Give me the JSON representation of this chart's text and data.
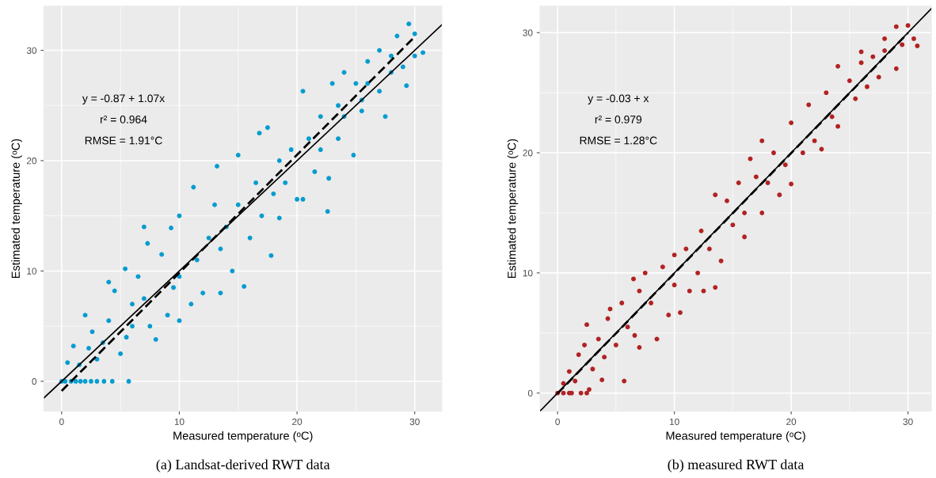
{
  "chart_data": [
    {
      "type": "scatter",
      "title": "(a) Landsat-derived RWT data",
      "xlabel": "Measured temperature (ᵒC)",
      "ylabel": "Estimated temperature (ᵒC)",
      "annotations": [
        "y = -0.87 + 1.07x",
        "r² = 0.964",
        "RMSE = 1.91°C"
      ],
      "xlim": [
        -1.5,
        32.3
      ],
      "ylim": [
        -2.7,
        34
      ],
      "xticks": [
        0,
        10,
        20,
        30
      ],
      "yticks": [
        0,
        10,
        20,
        30
      ],
      "grid": true,
      "legend": false,
      "marker": "circle",
      "series": [
        {
          "color": "#069ccf",
          "x": [
            0,
            0.3,
            0.8,
            1.2,
            1.6,
            2,
            2.5,
            3,
            3.6,
            4.3,
            5.7,
            0.5,
            1,
            1.5,
            2,
            2.6,
            2.3,
            3,
            3.5,
            4,
            4.5,
            4,
            5,
            5.4,
            5.5,
            6,
            6.5,
            6,
            7,
            7.3,
            7,
            7.5,
            8,
            8.5,
            9,
            9.3,
            9.5,
            10,
            10,
            10,
            11,
            11.2,
            11.5,
            12,
            12.5,
            13.2,
            13,
            13.5,
            13.5,
            14,
            14.5,
            15,
            15,
            15.5,
            16,
            16.5,
            16.8,
            17,
            17.5,
            17.8,
            18,
            18.5,
            18.5,
            19,
            19.5,
            20,
            20.5,
            20.5,
            21,
            21.5,
            22,
            22,
            22.7,
            22.6,
            23,
            23.5,
            23.5,
            24,
            24,
            24.8,
            25,
            25.5,
            25.5,
            26,
            26,
            27,
            27,
            27.5,
            28,
            28,
            28.5,
            29,
            29.5,
            30,
            30,
            30.7,
            29.3
          ],
          "values": [
            0,
            0,
            0,
            0,
            0,
            0,
            0,
            0,
            0,
            0,
            0,
            1.7,
            3.2,
            1.5,
            6,
            4.5,
            3,
            2,
            3.5,
            9,
            8.2,
            5.5,
            2.5,
            10.2,
            4,
            7,
            9.5,
            5,
            14,
            12.5,
            7.5,
            5,
            3.8,
            11.5,
            6,
            13.9,
            8.5,
            15,
            9.5,
            5.5,
            7,
            17.6,
            11,
            8,
            13,
            19.5,
            16,
            12,
            8,
            14,
            10,
            16,
            20.5,
            8.6,
            13,
            18,
            22.5,
            15,
            23,
            11.4,
            17,
            20,
            14.8,
            18,
            21,
            16.5,
            26.3,
            16.5,
            22,
            19,
            24,
            21,
            18.4,
            15.4,
            27,
            25,
            22,
            28,
            24,
            20.5,
            27,
            24.5,
            25.5,
            29,
            27,
            30,
            26.3,
            24,
            29.5,
            28,
            31.3,
            28.5,
            32.4,
            31.5,
            29.5,
            29.8,
            26.8
          ]
        },
        {
          "type": "line",
          "color": "#000000",
          "line_style": "solid",
          "marker": "none",
          "x": [
            -1.5,
            32.3
          ],
          "values": [
            -1.5,
            32.3
          ]
        },
        {
          "type": "line",
          "color": "#000000",
          "line_style": "dashed",
          "marker": "none",
          "x": [
            0,
            30
          ],
          "values": [
            -0.87,
            31.23
          ]
        }
      ]
    },
    {
      "type": "scatter",
      "title": "(b) measured RWT data",
      "xlabel": "Measured temperature (ᵒC)",
      "ylabel": "Estimated temperature (ᵒC)",
      "annotations": [
        "y = -0.03 + x",
        "r² = 0.979",
        "RMSE = 1.28°C"
      ],
      "xlim": [
        -1.5,
        32
      ],
      "ylim": [
        -1.5,
        32.2
      ],
      "xticks": [
        0,
        10,
        20,
        30
      ],
      "yticks": [
        0,
        10,
        20,
        30
      ],
      "grid": true,
      "legend": false,
      "marker": "circle",
      "series": [
        {
          "color": "#b22222",
          "x": [
            0,
            0.5,
            1,
            1.2,
            2,
            2.5,
            0.5,
            1,
            1.5,
            1.8,
            2.3,
            2.5,
            2.7,
            3,
            3.5,
            3.8,
            4,
            4.3,
            4.5,
            5,
            5.5,
            5.7,
            6,
            6.5,
            6.6,
            7,
            7,
            7.5,
            8,
            8.5,
            9,
            9.5,
            10,
            10,
            10.5,
            11,
            11.3,
            12,
            12.3,
            12.5,
            13,
            13.5,
            13.5,
            14,
            14.5,
            15,
            15.5,
            16,
            16.5,
            16,
            17,
            17.5,
            17.5,
            18,
            18.5,
            19,
            19.5,
            20,
            20,
            21,
            21.5,
            22,
            22.6,
            23,
            23.5,
            24,
            24,
            25,
            25.5,
            26,
            26,
            26.5,
            27,
            27.5,
            28,
            28,
            29,
            29.5,
            30,
            30.5,
            30.8,
            29
          ],
          "values": [
            0,
            0,
            0,
            0,
            0,
            0,
            0.8,
            1.8,
            1,
            3.2,
            4,
            5.7,
            0.3,
            2,
            4.5,
            1.1,
            3,
            6.2,
            7,
            4,
            7.5,
            1,
            5.5,
            9.5,
            4.8,
            8.5,
            3.8,
            10,
            7.5,
            4.5,
            10.5,
            6.5,
            9,
            11.5,
            6.7,
            12,
            8.5,
            10,
            13.5,
            8.5,
            12,
            16.5,
            8.8,
            11,
            16,
            14,
            17.5,
            15,
            19.5,
            13,
            18,
            21,
            15,
            17.5,
            20,
            16.5,
            19,
            22.5,
            17.4,
            20,
            24,
            21,
            20.3,
            25,
            23,
            27.2,
            22.2,
            26,
            24.5,
            27.5,
            28.4,
            25.5,
            28,
            26.3,
            28.5,
            29.5,
            30.5,
            29,
            30.6,
            29.5,
            28.9,
            27
          ]
        },
        {
          "type": "line",
          "color": "#000000",
          "line_style": "solid",
          "marker": "none",
          "x": [
            -1.5,
            32
          ],
          "values": [
            -1.5,
            32
          ]
        },
        {
          "type": "line",
          "color": "#000000",
          "line_style": "dashed",
          "marker": "none",
          "x": [
            0,
            30
          ],
          "values": [
            -0.03,
            29.97
          ]
        }
      ]
    }
  ]
}
